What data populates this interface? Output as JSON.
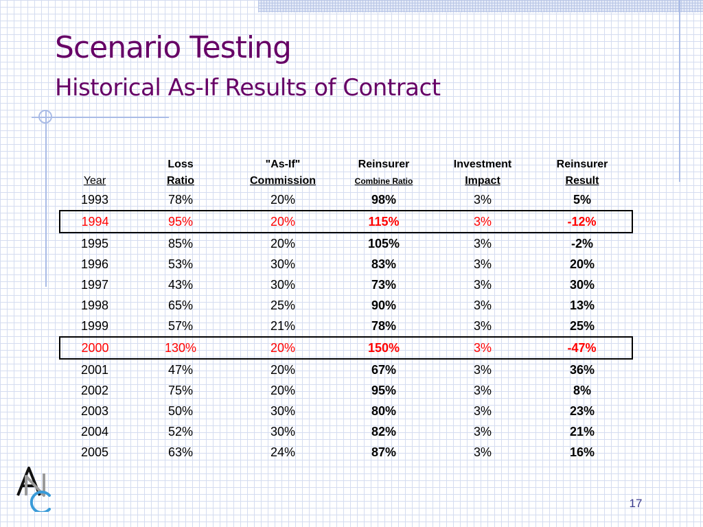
{
  "slide": {
    "title": "Scenario Testing",
    "subtitle": "Historical As-If Results of Contract",
    "page_number": "17",
    "logo_text": "ANC",
    "accent_color": "#660066",
    "highlight_color": "#ff0000"
  },
  "table": {
    "headers": {
      "year": {
        "line2": "Year"
      },
      "loss_ratio": {
        "line1": "Loss",
        "line2": "Ratio"
      },
      "commission": {
        "line1": "\"As-If\"",
        "line2": "Commission"
      },
      "combine_ratio": {
        "line1": "Reinsurer",
        "line2": "Combine Ratio"
      },
      "investment": {
        "line1": "Investment",
        "line2": "Impact"
      },
      "result": {
        "line1": "Reinsurer",
        "line2": "Result"
      }
    },
    "rows": [
      {
        "year": "1993",
        "loss_ratio": "78%",
        "commission": "20%",
        "combine_ratio": "98%",
        "investment": "3%",
        "result": "5%",
        "highlight": false
      },
      {
        "year": "1994",
        "loss_ratio": "95%",
        "commission": "20%",
        "combine_ratio": "115%",
        "investment": "3%",
        "result": "-12%",
        "highlight": true
      },
      {
        "year": "1995",
        "loss_ratio": "85%",
        "commission": "20%",
        "combine_ratio": "105%",
        "investment": "3%",
        "result": "-2%",
        "highlight": false
      },
      {
        "year": "1996",
        "loss_ratio": "53%",
        "commission": "30%",
        "combine_ratio": "83%",
        "investment": "3%",
        "result": "20%",
        "highlight": false
      },
      {
        "year": "1997",
        "loss_ratio": "43%",
        "commission": "30%",
        "combine_ratio": "73%",
        "investment": "3%",
        "result": "30%",
        "highlight": false
      },
      {
        "year": "1998",
        "loss_ratio": "65%",
        "commission": "25%",
        "combine_ratio": "90%",
        "investment": "3%",
        "result": "13%",
        "highlight": false
      },
      {
        "year": "1999",
        "loss_ratio": "57%",
        "commission": "21%",
        "combine_ratio": "78%",
        "investment": "3%",
        "result": "25%",
        "highlight": false
      },
      {
        "year": "2000",
        "loss_ratio": "130%",
        "commission": "20%",
        "combine_ratio": "150%",
        "investment": "3%",
        "result": "-47%",
        "highlight": true
      },
      {
        "year": "2001",
        "loss_ratio": "47%",
        "commission": "20%",
        "combine_ratio": "67%",
        "investment": "3%",
        "result": "36%",
        "highlight": false
      },
      {
        "year": "2002",
        "loss_ratio": "75%",
        "commission": "20%",
        "combine_ratio": "95%",
        "investment": "3%",
        "result": "8%",
        "highlight": false
      },
      {
        "year": "2003",
        "loss_ratio": "50%",
        "commission": "30%",
        "combine_ratio": "80%",
        "investment": "3%",
        "result": "23%",
        "highlight": false
      },
      {
        "year": "2004",
        "loss_ratio": "52%",
        "commission": "30%",
        "combine_ratio": "82%",
        "investment": "3%",
        "result": "21%",
        "highlight": false
      },
      {
        "year": "2005",
        "loss_ratio": "63%",
        "commission": "24%",
        "combine_ratio": "87%",
        "investment": "3%",
        "result": "16%",
        "highlight": false
      }
    ]
  }
}
